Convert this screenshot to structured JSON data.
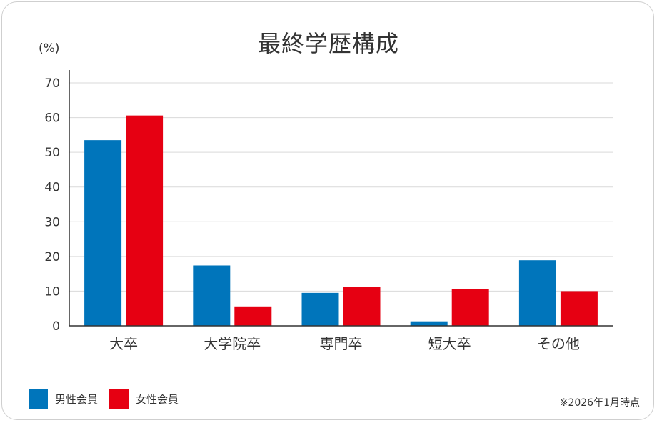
{
  "title": "最終学歴構成",
  "unit_label": "(%)",
  "note": "※2026年1月時点",
  "colors": {
    "male": "#0075bb",
    "female": "#e60012",
    "grid": "#d9d9d9",
    "axis": "#333333"
  },
  "chart_data": {
    "type": "bar",
    "title": "最終学歴構成",
    "ylabel": "(%)",
    "categories": [
      "大卒",
      "大学院卒",
      "専門卒",
      "短大卒",
      "その他"
    ],
    "series": [
      {
        "name": "男性会員",
        "values": [
          53.5,
          17.4,
          9.5,
          1.3,
          18.9
        ]
      },
      {
        "name": "女性会員",
        "values": [
          60.6,
          5.6,
          11.2,
          10.5,
          10.0
        ]
      }
    ],
    "ylim": [
      0,
      70
    ],
    "yticks": [
      0,
      10,
      20,
      30,
      40,
      50,
      60,
      70
    ],
    "grid": true,
    "legend": "bottom-left"
  }
}
